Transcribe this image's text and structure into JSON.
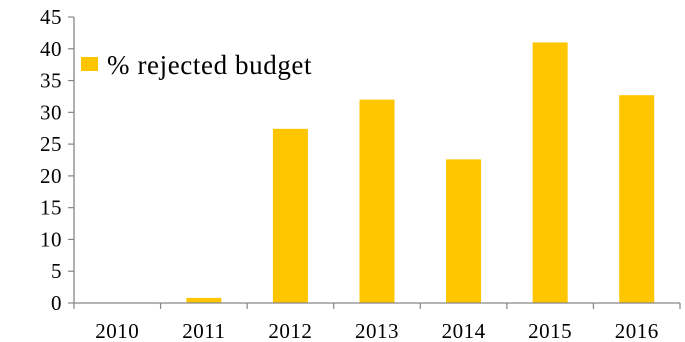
{
  "chart_data": {
    "type": "bar",
    "categories": [
      "2010",
      "2011",
      "2012",
      "2013",
      "2014",
      "2015",
      "2016"
    ],
    "series": [
      {
        "name": "% rejected budget",
        "values": [
          0,
          0.8,
          27.4,
          32.0,
          22.6,
          41.0,
          32.7
        ]
      }
    ],
    "title": "",
    "xlabel": "",
    "ylabel": "",
    "ylim": [
      0,
      45
    ],
    "yticks": [
      0,
      5,
      10,
      15,
      20,
      25,
      30,
      35,
      40,
      45
    ],
    "grid": false,
    "legend_position": "top-left",
    "colors": {
      "bar": "#FFC600",
      "axis": "#868686"
    }
  }
}
